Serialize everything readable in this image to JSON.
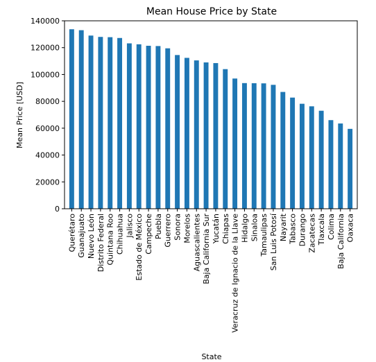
{
  "chart_data": {
    "type": "bar",
    "title": "Mean House Price by State",
    "xlabel": "State",
    "ylabel": "Mean Price [USD]",
    "ylim": [
      0,
      140000
    ],
    "yticks": [
      0,
      20000,
      40000,
      60000,
      80000,
      100000,
      120000,
      140000
    ],
    "grid": false,
    "bar_color": "#1f77b4",
    "categories": [
      "Querétaro",
      "Guanajuato",
      "Nuevo León",
      "Distrito Federal",
      "Quintana Roo",
      "Chihuahua",
      "Jalisco",
      "Estado de México",
      "Campeche",
      "Puebla",
      "Guerrero",
      "Sonora",
      "Morelos",
      "Aguascalientes",
      "Baja California Sur",
      "Yucatán",
      "Chiapas",
      "Veracruz de Ignacio de la Llave",
      "Hidalgo",
      "Sinaloa",
      "Tamaulipas",
      "San Luis Potosí",
      "Nayarit",
      "Tabasco",
      "Durango",
      "Zacatecas",
      "Tlaxcala",
      "Colima",
      "Baja California",
      "Oaxaca"
    ],
    "values": [
      133700,
      133000,
      129000,
      128000,
      127800,
      127200,
      123200,
      122500,
      121400,
      121200,
      119500,
      114500,
      112400,
      110500,
      109000,
      108500,
      104000,
      97000,
      93600,
      93500,
      93400,
      92300,
      87000,
      82800,
      78200,
      76300,
      73000,
      66000,
      63500,
      59500
    ]
  }
}
